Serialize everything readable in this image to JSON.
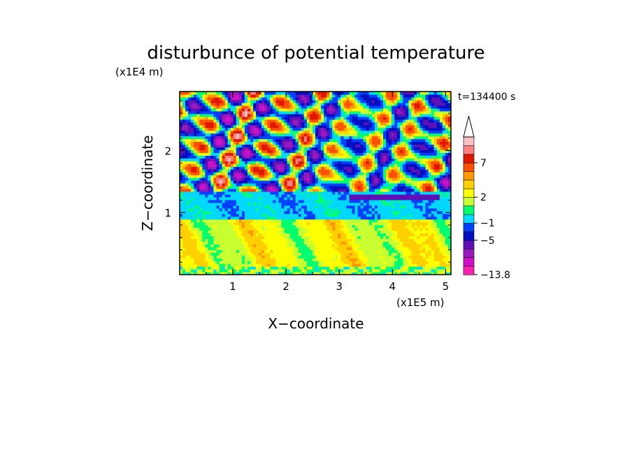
{
  "chart_data": {
    "type": "heatmap",
    "title": "disturbunce of potential temperature",
    "time_label": "t=134400 s",
    "xlabel": "X−coordinate",
    "ylabel": "Z−coordinate",
    "x_scale_label": "(x1E5 m)",
    "y_scale_label": "(x1E4 m)",
    "x_ticks": [
      "1",
      "2",
      "3",
      "4",
      "5"
    ],
    "x_tick_values": [
      1,
      2,
      3,
      4,
      5
    ],
    "y_ticks": [
      "1",
      "2"
    ],
    "y_tick_values": [
      1,
      2
    ],
    "xlim": [
      0,
      5.1
    ],
    "ylim": [
      0,
      2.95
    ],
    "colorbar": {
      "labels": [
        "7",
        "2",
        "−1",
        "−5",
        "−13.8"
      ],
      "label_values": [
        7,
        2,
        -1,
        -5,
        -13.8
      ],
      "colors": [
        "#ff20b0",
        "#d010c8",
        "#9818c0",
        "#6010b8",
        "#0010c0",
        "#0040ff",
        "#00d8ff",
        "#00ff70",
        "#c8ff30",
        "#ffff00",
        "#ffd000",
        "#ff9800",
        "#ff5000",
        "#e01800",
        "#ff8080",
        "#f8c0c0"
      ],
      "extend": "max"
    },
    "bands": [
      {
        "z_range": [
          0.0,
          0.1
        ],
        "pattern": "mixed green/yellow, small cells"
      },
      {
        "z_range": [
          0.1,
          0.9
        ],
        "pattern": "mostly yellow/orange, near zero to +3"
      },
      {
        "z_range": [
          0.9,
          1.3
        ],
        "pattern": "green/cyan, slightly negative"
      },
      {
        "z_range": [
          1.3,
          2.95
        ],
        "pattern": "wave cells, strong positive/negative alternation"
      }
    ]
  }
}
